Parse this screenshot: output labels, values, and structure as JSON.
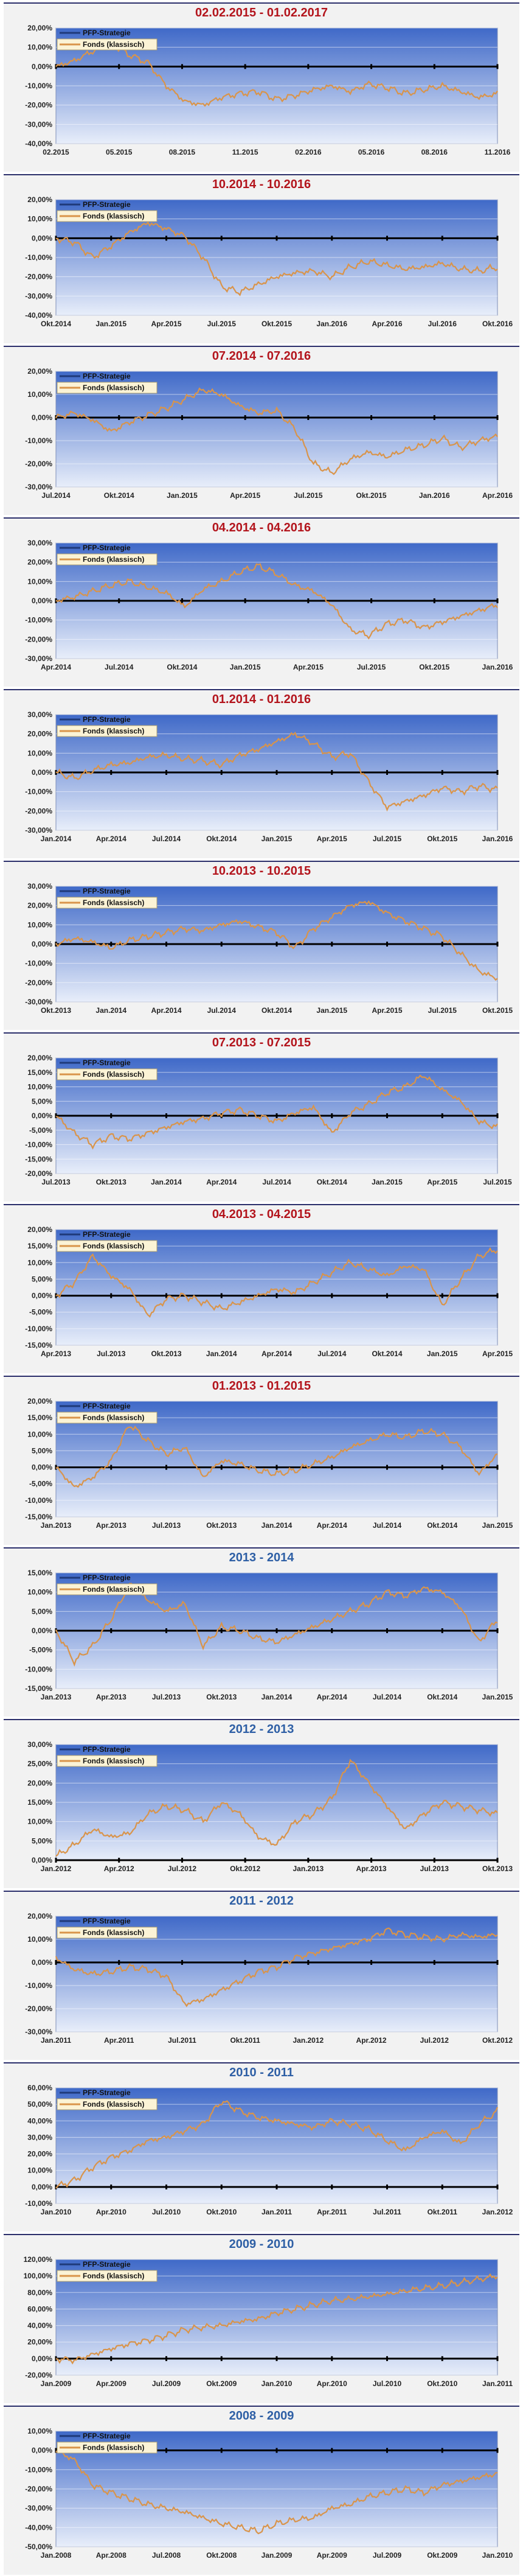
{
  "legend": {
    "series_a": "PFP-Strategie",
    "series_b": "Fonds (klassisch)"
  },
  "colors": {
    "title_dark_red": "#b3141c",
    "title_blue": "#2e5fa5",
    "series_a": "#1f3a7a",
    "series_b": "#d9944a",
    "plot_top": "#3f69c8",
    "plot_bottom": "#e8eefa"
  },
  "chart_data": [
    {
      "type": "line",
      "title": "02.02.2015 - 01.02.2017",
      "title_color": "dark_red",
      "ylim": [
        -40,
        20
      ],
      "yticks": [
        "20,00%",
        "10,00%",
        "0,00%",
        "-10,00%",
        "-20,00%",
        "-30,00%",
        "-40,00%"
      ],
      "xticks": [
        "02.2015",
        "05.2015",
        "08.2015",
        "11.2015",
        "02.2016",
        "05.2016",
        "08.2016",
        "11.2016"
      ],
      "series": [
        {
          "name": "PFP-Strategie",
          "values": [
            0,
            0
          ]
        },
        {
          "name": "Fonds (klassisch)",
          "values": [
            0,
            3,
            8,
            12,
            6,
            2,
            -10,
            -18,
            -20,
            -16,
            -14,
            -13,
            -17,
            -15,
            -12,
            -10,
            -13,
            -9,
            -11,
            -14,
            -12,
            -10,
            -13,
            -16,
            -14
          ]
        }
      ]
    },
    {
      "type": "line",
      "title": "10.2014 - 10.2016",
      "title_color": "dark_red",
      "ylim": [
        -40,
        20
      ],
      "yticks": [
        "20,00%",
        "10,00%",
        "0,00%",
        "-10,00%",
        "-20,00%",
        "-30,00%",
        "-40,00%"
      ],
      "xticks": [
        "Okt.2014",
        "Jan.2015",
        "Apr.2015",
        "Jul.2015",
        "Okt.2015",
        "Jan.2016",
        "Apr.2016",
        "Jul.2016",
        "Okt.2016"
      ],
      "series": [
        {
          "name": "PFP-Strategie",
          "values": [
            0,
            0
          ]
        },
        {
          "name": "Fonds (klassisch)",
          "values": [
            0,
            -2,
            -10,
            -4,
            3,
            8,
            5,
            1,
            -10,
            -25,
            -28,
            -24,
            -20,
            -18,
            -17,
            -20,
            -15,
            -12,
            -14,
            -16,
            -15,
            -13,
            -16,
            -17,
            -15
          ]
        }
      ]
    },
    {
      "type": "line",
      "title": "07.2014 - 07.2016",
      "title_color": "dark_red",
      "ylim": [
        -30,
        20
      ],
      "yticks": [
        "20,00%",
        "10,00%",
        "0,00%",
        "-10,00%",
        "-20,00%",
        "-30,00%"
      ],
      "xticks": [
        "Jul.2014",
        "Okt.2014",
        "Jan.2015",
        "Apr.2015",
        "Jul.2015",
        "Okt.2015",
        "Jan.2016",
        "Apr.2016"
      ],
      "series": [
        {
          "name": "PFP-Strategie",
          "values": [
            0,
            0
          ]
        },
        {
          "name": "Fonds (klassisch)",
          "values": [
            0,
            2,
            -1,
            -6,
            -2,
            1,
            4,
            8,
            12,
            10,
            5,
            2,
            3,
            -5,
            -20,
            -24,
            -18,
            -15,
            -17,
            -14,
            -12,
            -9,
            -13,
            -10,
            -8
          ]
        }
      ]
    },
    {
      "type": "line",
      "title": "04.2014 - 04.2016",
      "title_color": "dark_red",
      "ylim": [
        -30,
        30
      ],
      "yticks": [
        "30,00%",
        "20,00%",
        "10,00%",
        "0,00%",
        "-10,00%",
        "-20,00%",
        "-30,00%"
      ],
      "xticks": [
        "Apr.2014",
        "Jul.2014",
        "Okt.2014",
        "Jan.2015",
        "Apr.2015",
        "Jul.2015",
        "Okt.2015",
        "Jan.2016"
      ],
      "series": [
        {
          "name": "PFP-Strategie",
          "values": [
            0,
            0
          ]
        },
        {
          "name": "Fonds (klassisch)",
          "values": [
            0,
            2,
            5,
            8,
            10,
            7,
            4,
            -3,
            6,
            10,
            15,
            18,
            14,
            8,
            5,
            -2,
            -15,
            -18,
            -12,
            -10,
            -14,
            -11,
            -8,
            -5,
            -2
          ]
        }
      ]
    },
    {
      "type": "line",
      "title": "01.2014 - 01.2016",
      "title_color": "dark_red",
      "ylim": [
        -30,
        30
      ],
      "yticks": [
        "30,00%",
        "20,00%",
        "10,00%",
        "0,00%",
        "-10,00%",
        "-20,00%",
        "-30,00%"
      ],
      "xticks": [
        "Jan.2014",
        "Apr.2014",
        "Jul.2014",
        "Okt.2014",
        "Jan.2015",
        "Apr.2015",
        "Jul.2015",
        "Okt.2015",
        "Jan.2016"
      ],
      "series": [
        {
          "name": "PFP-Strategie",
          "values": [
            0,
            0
          ]
        },
        {
          "name": "Fonds (klassisch)",
          "values": [
            0,
            -3,
            1,
            4,
            5,
            8,
            9,
            7,
            6,
            4,
            9,
            12,
            16,
            20,
            15,
            8,
            10,
            -5,
            -18,
            -15,
            -12,
            -8,
            -10,
            -7,
            -9
          ]
        }
      ]
    },
    {
      "type": "line",
      "title": "10.2013 - 10.2015",
      "title_color": "dark_red",
      "ylim": [
        -30,
        30
      ],
      "yticks": [
        "30,00%",
        "20,00%",
        "10,00%",
        "0,00%",
        "-10,00%",
        "-20,00%",
        "-30,00%"
      ],
      "xticks": [
        "Okt.2013",
        "Jan.2014",
        "Apr.2014",
        "Jul.2014",
        "Okt.2014",
        "Jan.2015",
        "Apr.2015",
        "Jul.2015",
        "Okt.2015"
      ],
      "series": [
        {
          "name": "PFP-Strategie",
          "values": [
            0,
            0
          ]
        },
        {
          "name": "Fonds (klassisch)",
          "values": [
            0,
            3,
            1,
            -2,
            2,
            4,
            6,
            8,
            7,
            10,
            12,
            9,
            6,
            -2,
            8,
            14,
            20,
            22,
            16,
            12,
            8,
            4,
            -5,
            -14,
            -18
          ]
        }
      ]
    },
    {
      "type": "line",
      "title": "07.2013 - 07.2015",
      "title_color": "dark_red",
      "ylim": [
        -20,
        20
      ],
      "yticks": [
        "20,00%",
        "15,00%",
        "10,00%",
        "5,00%",
        "0,00%",
        "-5,00%",
        "-10,00%",
        "-15,00%",
        "-20,00%"
      ],
      "xticks": [
        "Jul.2013",
        "Okt.2013",
        "Jan.2014",
        "Apr.2014",
        "Jul.2014",
        "Okt.2014",
        "Jan.2015",
        "Apr.2015",
        "Jul.2015"
      ],
      "series": [
        {
          "name": "PFP-Strategie",
          "values": [
            0,
            0
          ]
        },
        {
          "name": "Fonds (klassisch)",
          "values": [
            0,
            -6,
            -10,
            -7,
            -8,
            -6,
            -4,
            -2,
            -1,
            1,
            2,
            0,
            -2,
            1,
            3,
            -6,
            1,
            4,
            8,
            10,
            14,
            9,
            5,
            -2,
            -4
          ]
        }
      ]
    },
    {
      "type": "line",
      "title": "04.2013 - 04.2015",
      "title_color": "dark_red",
      "ylim": [
        -15,
        20
      ],
      "yticks": [
        "20,00%",
        "15,00%",
        "10,00%",
        "5,00%",
        "0,00%",
        "-5,00%",
        "-10,00%",
        "-15,00%"
      ],
      "xticks": [
        "Apr.2013",
        "Jul.2013",
        "Okt.2013",
        "Jan.2014",
        "Apr.2014",
        "Jul.2014",
        "Okt.2014",
        "Jan.2015",
        "Apr.2015"
      ],
      "series": [
        {
          "name": "PFP-Strategie",
          "values": [
            0,
            0
          ]
        },
        {
          "name": "Fonds (klassisch)",
          "values": [
            0,
            4,
            12,
            6,
            2,
            -6,
            -1,
            0,
            -2,
            -4,
            -2,
            0,
            2,
            1,
            4,
            7,
            10,
            8,
            6,
            9,
            8,
            -3,
            5,
            12,
            14
          ]
        }
      ]
    },
    {
      "type": "line",
      "title": "01.2013 - 01.2015",
      "title_color": "dark_red",
      "ylim": [
        -15,
        20
      ],
      "yticks": [
        "20,00%",
        "15,00%",
        "10,00%",
        "5,00%",
        "0,00%",
        "-5,00%",
        "-10,00%",
        "-15,00%"
      ],
      "xticks": [
        "Jan.2013",
        "Apr.2013",
        "Jul.2013",
        "Okt.2013",
        "Jan.2014",
        "Apr.2014",
        "Jul.2014",
        "Okt.2014",
        "Jan.2015"
      ],
      "series": [
        {
          "name": "PFP-Strategie",
          "values": [
            0,
            0
          ]
        },
        {
          "name": "Fonds (klassisch)",
          "values": [
            0,
            -6,
            -3,
            2,
            13,
            8,
            4,
            6,
            -3,
            2,
            1,
            -1,
            -2,
            -1,
            1,
            3,
            6,
            8,
            10,
            9,
            11,
            10,
            6,
            -2,
            4
          ]
        }
      ]
    },
    {
      "type": "line",
      "title": "2013 - 2014",
      "title_color": "blue",
      "ylim": [
        -15,
        15
      ],
      "yticks": [
        "15,00%",
        "10,00%",
        "5,00%",
        "0,00%",
        "-5,00%",
        "-10,00%",
        "-15,00%"
      ],
      "xticks": [
        "Jan.2013",
        "Apr.2013",
        "Jul.2013",
        "Okt.2013",
        "Jan.2014",
        "Apr.2014",
        "Jul.2014",
        "Okt.2014",
        "Jan.2015"
      ],
      "series": [
        {
          "name": "PFP-Strategie",
          "values": [
            0,
            0
          ]
        },
        {
          "name": "Fonds (klassisch)",
          "values": [
            0,
            -8,
            -4,
            3,
            12,
            8,
            5,
            7,
            -4,
            1,
            0,
            -2,
            -3,
            -1,
            1,
            3,
            5,
            7,
            10,
            9,
            11,
            10,
            6,
            -3,
            3
          ]
        }
      ]
    },
    {
      "type": "line",
      "title": "2012 - 2013",
      "title_color": "blue",
      "ylim": [
        0,
        30
      ],
      "yticks": [
        "30,00%",
        "25,00%",
        "20,00%",
        "15,00%",
        "10,00%",
        "5,00%",
        "0,00%"
      ],
      "xticks": [
        "Jan.2012",
        "Apr.2012",
        "Jul.2012",
        "Okt.2012",
        "Jan.2013",
        "Apr.2013",
        "Jul.2013",
        "Okt.2013"
      ],
      "series": [
        {
          "name": "PFP-Strategie",
          "values": [
            0,
            0
          ]
        },
        {
          "name": "Fonds (klassisch)",
          "values": [
            1,
            4,
            8,
            6,
            7,
            12,
            14,
            13,
            10,
            15,
            12,
            6,
            4,
            10,
            12,
            16,
            26,
            20,
            14,
            8,
            12,
            15,
            14,
            13,
            12
          ]
        }
      ]
    },
    {
      "type": "line",
      "title": "2011 - 2012",
      "title_color": "blue",
      "ylim": [
        -30,
        20
      ],
      "yticks": [
        "20,00%",
        "10,00%",
        "0,00%",
        "-10,00%",
        "-20,00%",
        "-30,00%"
      ],
      "xticks": [
        "Jan.2011",
        "Apr.2011",
        "Jul.2011",
        "Okt.2011",
        "Jan.2012",
        "Apr.2012",
        "Jul.2012",
        "Okt.2012"
      ],
      "series": [
        {
          "name": "PFP-Strategie",
          "values": [
            0,
            0
          ]
        },
        {
          "name": "Fonds (klassisch)",
          "values": [
            2,
            -3,
            -5,
            -4,
            -2,
            -3,
            -6,
            -18,
            -16,
            -12,
            -8,
            -4,
            -2,
            2,
            4,
            6,
            8,
            10,
            14,
            12,
            11,
            10,
            12,
            11,
            12
          ]
        }
      ]
    },
    {
      "type": "line",
      "title": "2010 - 2011",
      "title_color": "blue",
      "ylim": [
        -10,
        60
      ],
      "yticks": [
        "60,00%",
        "50,00%",
        "40,00%",
        "30,00%",
        "20,00%",
        "10,00%",
        "0,00%",
        "-10,00%"
      ],
      "xticks": [
        "Jan.2010",
        "Apr.2010",
        "Jul.2010",
        "Okt.2010",
        "Jan.2011",
        "Apr.2011",
        "Jul.2011",
        "Okt.2011",
        "Jan.2012"
      ],
      "series": [
        {
          "name": "PFP-Strategie",
          "values": [
            0,
            0
          ]
        },
        {
          "name": "Fonds (klassisch)",
          "values": [
            0,
            4,
            12,
            18,
            22,
            28,
            30,
            34,
            38,
            52,
            46,
            42,
            40,
            38,
            36,
            40,
            38,
            35,
            28,
            22,
            30,
            34,
            26,
            38,
            46
          ]
        }
      ]
    },
    {
      "type": "line",
      "title": "2009 - 2010",
      "title_color": "blue",
      "ylim": [
        -20,
        120
      ],
      "yticks": [
        "120,00%",
        "100,00%",
        "80,00%",
        "60,00%",
        "40,00%",
        "20,00%",
        "0,00%",
        "-20,00%"
      ],
      "xticks": [
        "Jan.2009",
        "Apr.2009",
        "Jul.2009",
        "Okt.2009",
        "Jan.2010",
        "Apr.2010",
        "Jul.2010",
        "Okt.2010",
        "Jan.2011"
      ],
      "series": [
        {
          "name": "PFP-Strategie",
          "values": [
            0,
            0
          ]
        },
        {
          "name": "Fonds (klassisch)",
          "values": [
            0,
            -2,
            5,
            12,
            18,
            22,
            28,
            35,
            38,
            40,
            45,
            48,
            55,
            60,
            65,
            70,
            72,
            75,
            78,
            82,
            85,
            88,
            92,
            96,
            100
          ]
        }
      ]
    },
    {
      "type": "line",
      "title": "2008 - 2009",
      "title_color": "blue",
      "ylim": [
        -50,
        10
      ],
      "yticks": [
        "10,00%",
        "0,00%",
        "-10,00%",
        "-20,00%",
        "-30,00%",
        "-40,00%",
        "-50,00%"
      ],
      "xticks": [
        "Jan.2008",
        "Apr.2008",
        "Jul.2008",
        "Okt.2008",
        "Jan.2009",
        "Apr.2009",
        "Jul.2009",
        "Okt.2009",
        "Jan.2010"
      ],
      "series": [
        {
          "name": "PFP-Strategie",
          "values": [
            0,
            0
          ]
        },
        {
          "name": "Fonds (klassisch)",
          "values": [
            0,
            -5,
            -18,
            -22,
            -25,
            -28,
            -30,
            -32,
            -35,
            -38,
            -40,
            -42,
            -38,
            -36,
            -35,
            -30,
            -28,
            -24,
            -22,
            -20,
            -22,
            -18,
            -16,
            -14,
            -12
          ]
        }
      ]
    }
  ]
}
